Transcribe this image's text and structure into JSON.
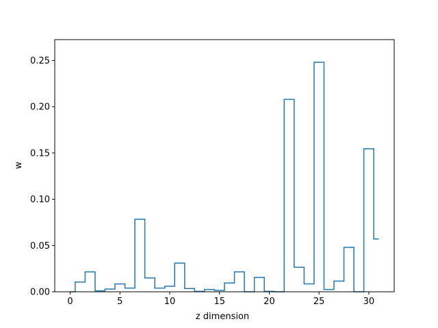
{
  "chart_data": {
    "type": "line",
    "drawstyle": "steps-mid",
    "title": "",
    "xlabel": "z dimension",
    "ylabel": "w",
    "xlim": [
      -1.55,
      32.55
    ],
    "ylim": [
      0,
      0.2725
    ],
    "xticks": [
      0,
      5,
      10,
      15,
      20,
      25,
      30
    ],
    "yticks": [
      0.0,
      0.05,
      0.1,
      0.15,
      0.2,
      0.25
    ],
    "ytick_labels": [
      "0.00",
      "0.05",
      "0.10",
      "0.15",
      "0.20",
      "0.25"
    ],
    "grid": false,
    "legend": "none",
    "series": [
      {
        "color": "#1f77b4",
        "x": [
          0,
          1,
          2,
          3,
          4,
          5,
          6,
          7,
          8,
          9,
          10,
          11,
          12,
          13,
          14,
          15,
          16,
          17,
          18,
          19,
          20,
          21,
          22,
          23,
          24,
          25,
          26,
          27,
          28,
          29,
          30,
          31
        ],
        "y": [
          0.0,
          0.0105,
          0.0215,
          0.001,
          0.003,
          0.0085,
          0.004,
          0.0785,
          0.015,
          0.004,
          0.006,
          0.031,
          0.0035,
          0.0005,
          0.0025,
          0.0015,
          0.0095,
          0.0215,
          0.0,
          0.0155,
          0.0005,
          0.0,
          0.208,
          0.0265,
          0.0085,
          0.248,
          0.0025,
          0.0115,
          0.048,
          0.0,
          0.1545,
          0.057
        ]
      }
    ]
  }
}
